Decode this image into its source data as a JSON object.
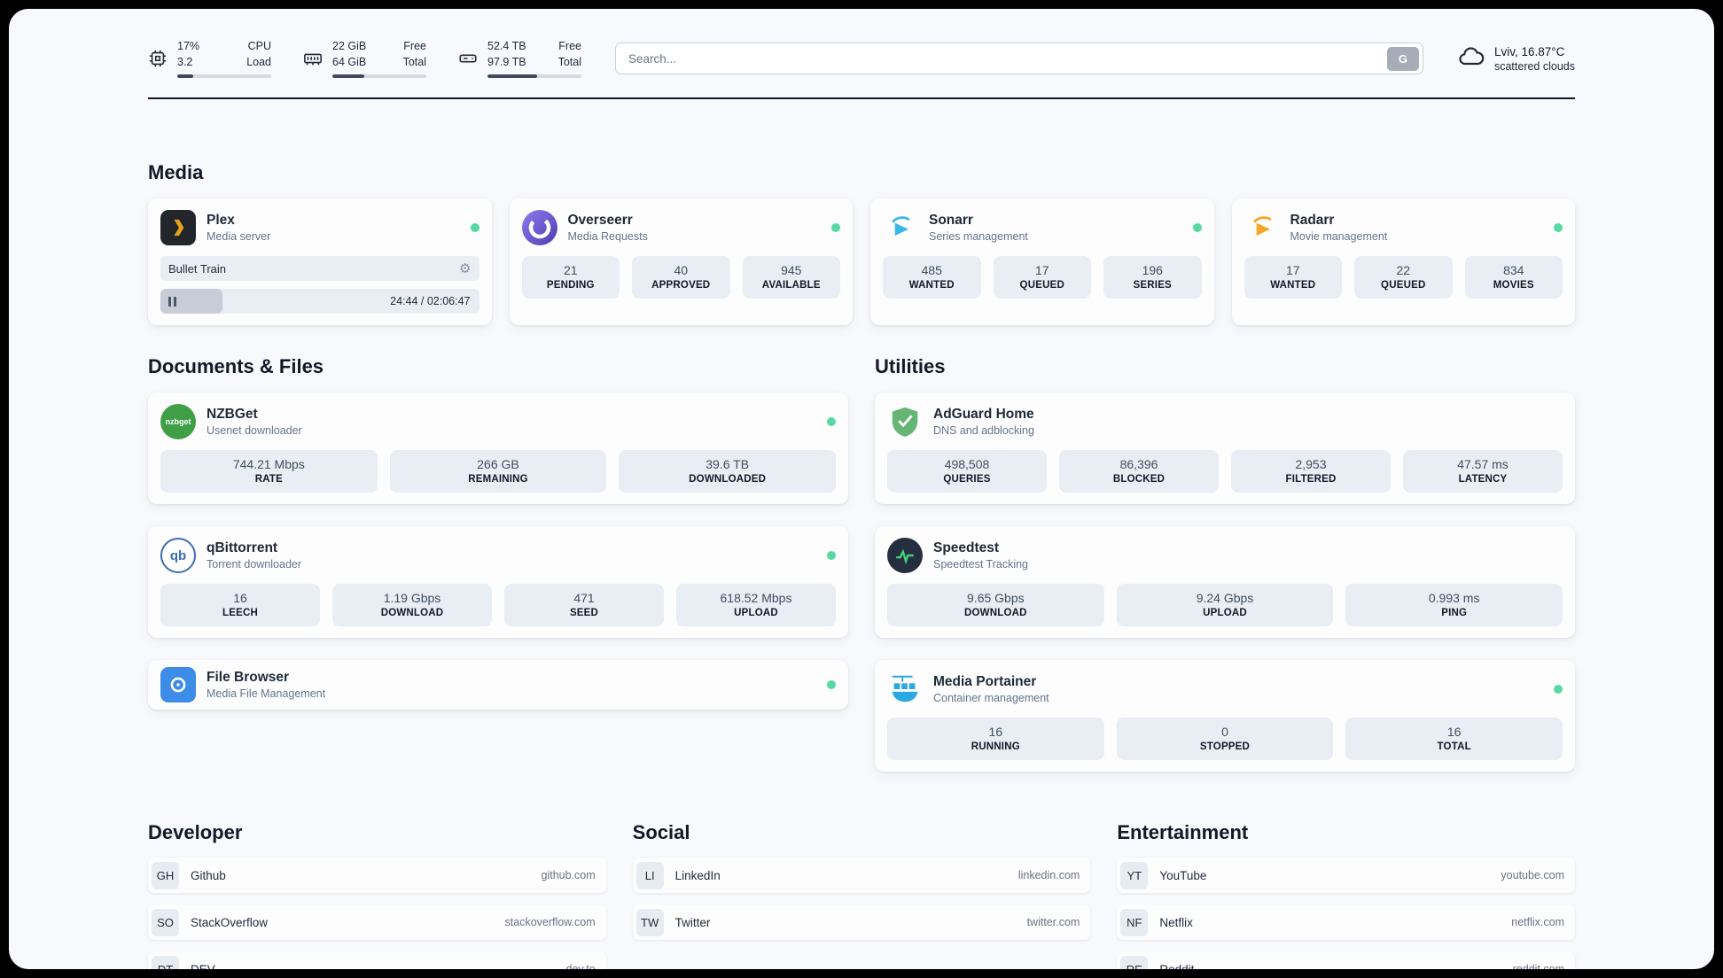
{
  "topbar": {
    "cpu": {
      "percent": "17%",
      "load": "3.2",
      "label_line1": "CPU",
      "label_line2": "Load",
      "bar": 17
    },
    "ram": {
      "value_line1": "22 GiB",
      "value_line2": "64 GiB",
      "label_line1": "Free",
      "label_line2": "Total",
      "bar": 34
    },
    "disk": {
      "value_line1": "52.4 TB",
      "value_line2": "97.9 TB",
      "label_line1": "Free",
      "label_line2": "Total",
      "bar": 53
    },
    "search": {
      "placeholder": "Search...",
      "button_label": "G"
    },
    "weather": {
      "location": "Lviv, 16.87°C",
      "condition": "scattered clouds"
    }
  },
  "sections": {
    "media": {
      "title": "Media",
      "plex": {
        "name": "Plex",
        "subtitle": "Media server",
        "now_playing": "Bullet Train",
        "time": "24:44 / 02:06:47",
        "progress": 19.5
      },
      "overseerr": {
        "name": "Overseerr",
        "subtitle": "Media Requests",
        "stats": [
          {
            "value": "21",
            "label": "PENDING"
          },
          {
            "value": "40",
            "label": "APPROVED"
          },
          {
            "value": "945",
            "label": "AVAILABLE"
          }
        ]
      },
      "sonarr": {
        "name": "Sonarr",
        "subtitle": "Series management",
        "stats": [
          {
            "value": "485",
            "label": "WANTED"
          },
          {
            "value": "17",
            "label": "QUEUED"
          },
          {
            "value": "196",
            "label": "SERIES"
          }
        ]
      },
      "radarr": {
        "name": "Radarr",
        "subtitle": "Movie management",
        "stats": [
          {
            "value": "17",
            "label": "WANTED"
          },
          {
            "value": "22",
            "label": "QUEUED"
          },
          {
            "value": "834",
            "label": "MOVIES"
          }
        ]
      }
    },
    "documents": {
      "title": "Documents & Files",
      "nzbget": {
        "name": "NZBGet",
        "subtitle": "Usenet downloader",
        "stats": [
          {
            "value": "744.21 Mbps",
            "label": "RATE"
          },
          {
            "value": "266 GB",
            "label": "REMAINING"
          },
          {
            "value": "39.6 TB",
            "label": "DOWNLOADED"
          }
        ]
      },
      "qbittorrent": {
        "name": "qBittorrent",
        "subtitle": "Torrent downloader",
        "stats": [
          {
            "value": "16",
            "label": "LEECH"
          },
          {
            "value": "1.19 Gbps",
            "label": "DOWNLOAD"
          },
          {
            "value": "471",
            "label": "SEED"
          },
          {
            "value": "618.52 Mbps",
            "label": "UPLOAD"
          }
        ]
      },
      "filebrowser": {
        "name": "File Browser",
        "subtitle": "Media File Management"
      }
    },
    "utilities": {
      "title": "Utilities",
      "adguard": {
        "name": "AdGuard Home",
        "subtitle": "DNS and adblocking",
        "stats": [
          {
            "value": "498,508",
            "label": "QUERIES"
          },
          {
            "value": "86,396",
            "label": "BLOCKED"
          },
          {
            "value": "2,953",
            "label": "FILTERED"
          },
          {
            "value": "47.57 ms",
            "label": "LATENCY"
          }
        ]
      },
      "speedtest": {
        "name": "Speedtest",
        "subtitle": "Speedtest Tracking",
        "stats": [
          {
            "value": "9.65 Gbps",
            "label": "DOWNLOAD"
          },
          {
            "value": "9.24 Gbps",
            "label": "UPLOAD"
          },
          {
            "value": "0.993 ms",
            "label": "PING"
          }
        ]
      },
      "portainer": {
        "name": "Media Portainer",
        "subtitle": "Container management",
        "stats": [
          {
            "value": "16",
            "label": "RUNNING"
          },
          {
            "value": "0",
            "label": "STOPPED"
          },
          {
            "value": "16",
            "label": "TOTAL"
          }
        ]
      }
    },
    "developer": {
      "title": "Developer",
      "links": [
        {
          "badge": "GH",
          "name": "Github",
          "domain": "github.com"
        },
        {
          "badge": "SO",
          "name": "StackOverflow",
          "domain": "stackoverflow.com"
        },
        {
          "badge": "DT",
          "name": "DEV",
          "domain": "dev.to"
        }
      ]
    },
    "social": {
      "title": "Social",
      "links": [
        {
          "badge": "LI",
          "name": "LinkedIn",
          "domain": "linkedin.com"
        },
        {
          "badge": "TW",
          "name": "Twitter",
          "domain": "twitter.com"
        }
      ]
    },
    "entertainment": {
      "title": "Entertainment",
      "links": [
        {
          "badge": "YT",
          "name": "YouTube",
          "domain": "youtube.com"
        },
        {
          "badge": "NF",
          "name": "Netflix",
          "domain": "netflix.com"
        },
        {
          "badge": "RE",
          "name": "Reddit",
          "domain": "reddit.com"
        }
      ]
    }
  },
  "icons": {
    "nzbget_text": "nzbget",
    "qbittorrent_text": "qb"
  },
  "colors": {
    "status_online": "#57d9a3",
    "plex_accent": "#e8a11c",
    "overseerr_purple": "#5f4bb6",
    "sonarr_blue": "#38b8e8",
    "radarr_amber": "#f5a623",
    "nzbget_green": "#3f9e46",
    "qbittorrent_blue": "#3d6db5",
    "adguard_green": "#66b574",
    "speedtest_pulse": "#44d07b",
    "filebrowser_blue": "#3d8ce8",
    "portainer_blue": "#2aa8e0"
  }
}
